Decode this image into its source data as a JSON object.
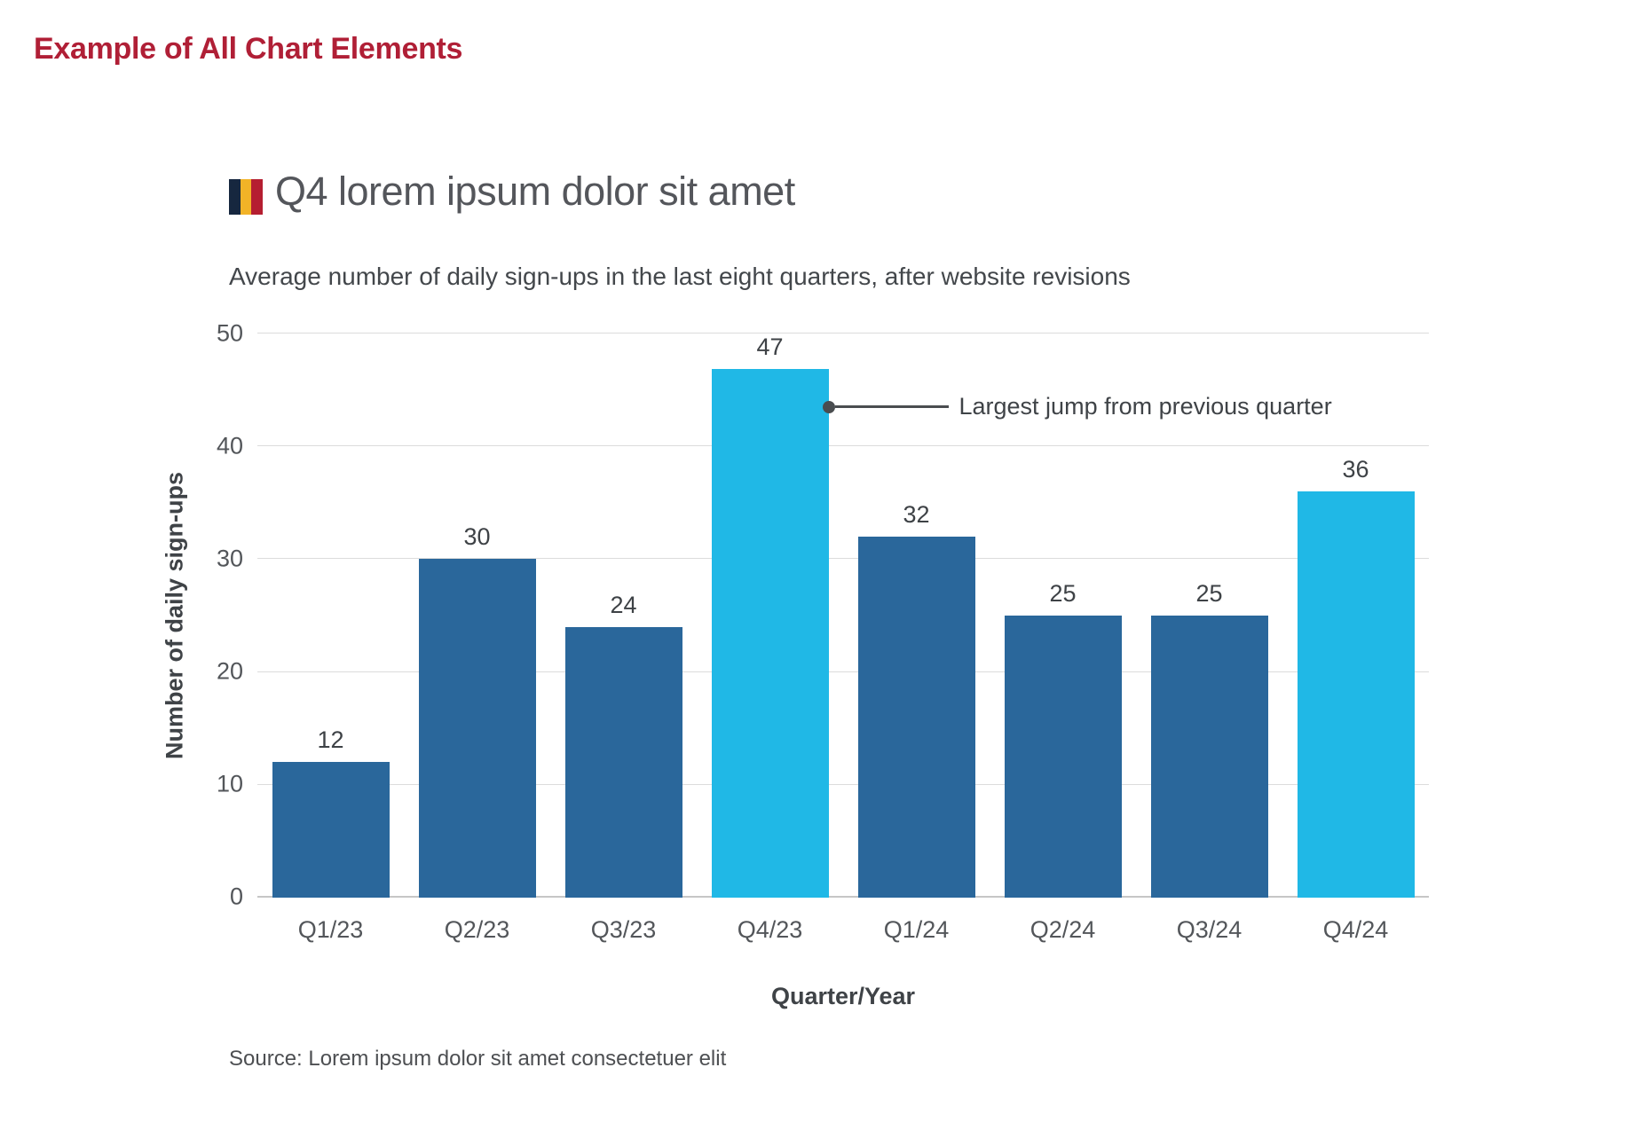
{
  "page": {
    "header": "Example of All Chart Elements"
  },
  "chart": {
    "title": "Q4 lorem ipsum dolor sit amet",
    "subtitle": "Average number of daily sign-ups in the last eight quarters, after website revisions",
    "source": "Source: Lorem ipsum dolor sit amet consectetuer elit",
    "flag_icon_colors": [
      "#16273F",
      "#F2B327",
      "#B51E31"
    ],
    "header_color": "#B01F36"
  },
  "chart_data": {
    "type": "bar",
    "title": "Q4 lorem ipsum dolor sit amet",
    "subtitle": "Average number of daily sign-ups in the last eight quarters, after website revisions",
    "categories": [
      "Q1/23",
      "Q2/23",
      "Q3/23",
      "Q4/23",
      "Q1/24",
      "Q2/24",
      "Q3/24",
      "Q4/24"
    ],
    "values": [
      12,
      30,
      24,
      47,
      32,
      25,
      25,
      36
    ],
    "xlabel": "Quarter/Year",
    "ylabel": "Number of daily sign-ups",
    "ylim": [
      0,
      50
    ],
    "yticks": [
      0,
      10,
      20,
      30,
      40,
      50
    ],
    "grid": "horizontal",
    "legend": "none",
    "bar_color": "#2A679B",
    "highlight_color": "#20B8E6",
    "highlight_indexes": [
      3,
      7
    ],
    "annotation": {
      "text": "Largest jump from previous quarter",
      "target_category": "Q4/23",
      "side": "right"
    }
  }
}
